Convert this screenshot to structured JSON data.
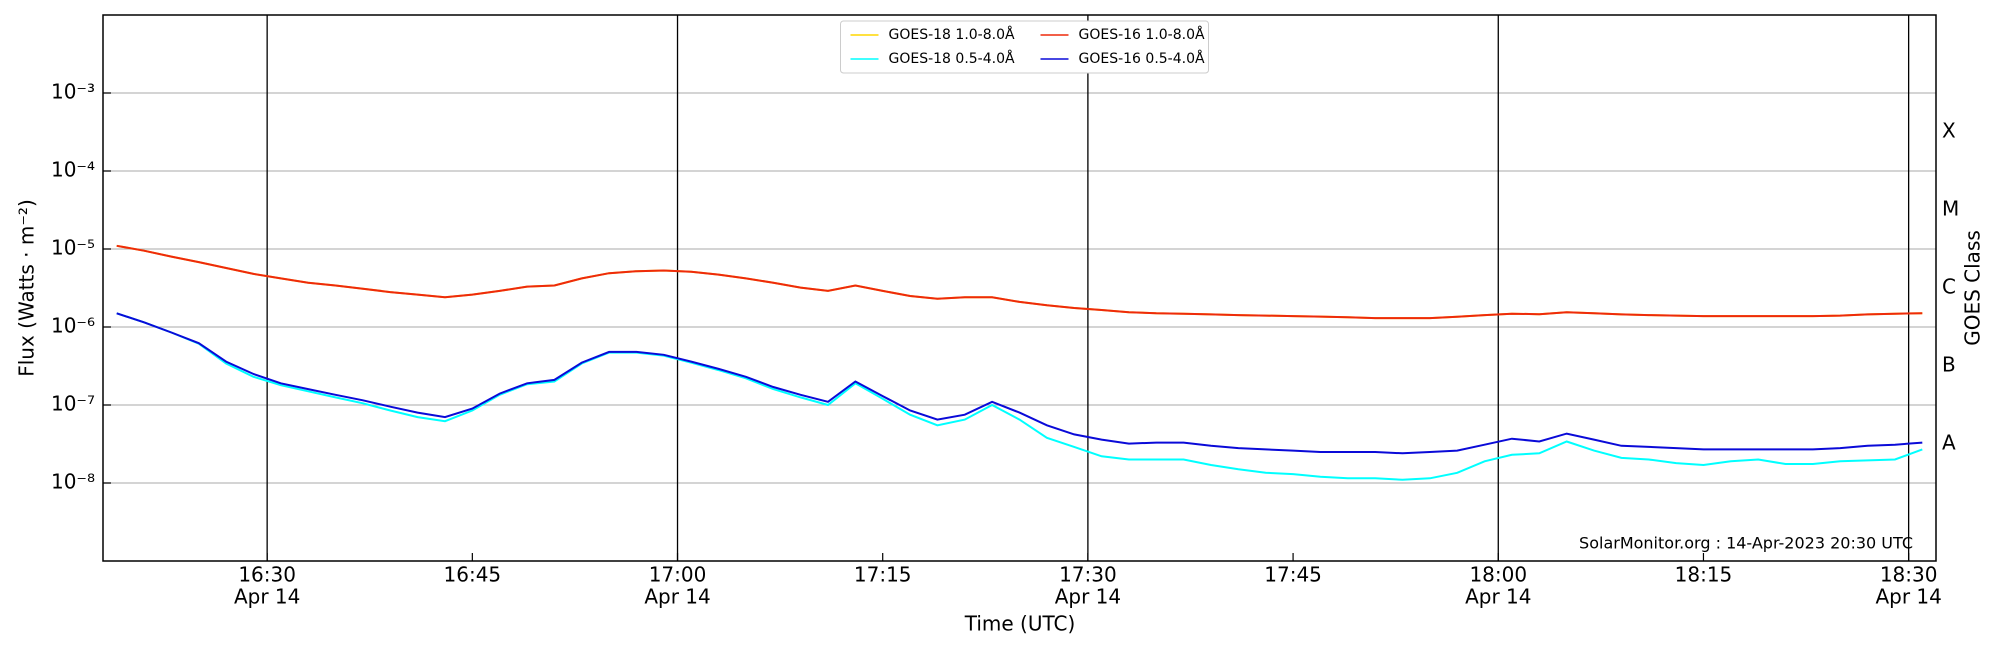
{
  "chart_data": {
    "type": "line",
    "xlabel": "Time (UTC)",
    "ylabel": "Flux (Watts · m⁻²)",
    "y2label": "GOES Class",
    "annotation": "SolarMonitor.org : 14-Apr-2023 20:30 UTC",
    "log_y": true,
    "grid": true,
    "legend": "upper center",
    "xlim": [
      "16:18",
      "18:32"
    ],
    "xticks": [
      {
        "value": "16:30",
        "label": "16:30",
        "date": "Apr 14"
      },
      {
        "value": "16:45",
        "label": "16:45"
      },
      {
        "value": "17:00",
        "label": "17:00",
        "date": "Apr 14"
      },
      {
        "value": "17:15",
        "label": "17:15"
      },
      {
        "value": "17:30",
        "label": "17:30",
        "date": "Apr 14"
      },
      {
        "value": "17:45",
        "label": "17:45"
      },
      {
        "value": "18:00",
        "label": "18:00",
        "date": "Apr 14"
      },
      {
        "value": "18:15",
        "label": "18:15"
      },
      {
        "value": "18:30",
        "label": "18:30",
        "date": "Apr 14"
      }
    ],
    "vlines": [
      "16:30",
      "17:00",
      "17:30",
      "18:00",
      "18:30"
    ],
    "ylim": [
      1e-09,
      0.01
    ],
    "yticks": [
      {
        "value": 1e-08,
        "label": "10⁻⁸"
      },
      {
        "value": 1e-07,
        "label": "10⁻⁷"
      },
      {
        "value": 1e-06,
        "label": "10⁻⁶"
      },
      {
        "value": 1e-05,
        "label": "10⁻⁵"
      },
      {
        "value": 0.0001,
        "label": "10⁻⁴"
      },
      {
        "value": 0.001,
        "label": "10⁻³"
      }
    ],
    "y2lim": [
      1e-09,
      0.01
    ],
    "y2ticks": [
      {
        "value": 3.16e-08,
        "label": "A"
      },
      {
        "value": 3.16e-07,
        "label": "B"
      },
      {
        "value": 3.16e-06,
        "label": "C"
      },
      {
        "value": 3.16e-05,
        "label": "M"
      },
      {
        "value": 0.000316,
        "label": "X"
      }
    ],
    "x": [
      "16:19",
      "16:21",
      "16:23",
      "16:25",
      "16:27",
      "16:29",
      "16:31",
      "16:33",
      "16:35",
      "16:37",
      "16:39",
      "16:41",
      "16:43",
      "16:45",
      "16:47",
      "16:49",
      "16:51",
      "16:53",
      "16:55",
      "16:57",
      "16:59",
      "17:01",
      "17:03",
      "17:05",
      "17:07",
      "17:09",
      "17:11",
      "17:13",
      "17:15",
      "17:17",
      "17:19",
      "17:21",
      "17:23",
      "17:25",
      "17:27",
      "17:29",
      "17:31",
      "17:33",
      "17:35",
      "17:37",
      "17:39",
      "17:41",
      "17:43",
      "17:45",
      "17:47",
      "17:49",
      "17:51",
      "17:53",
      "17:55",
      "17:57",
      "17:59",
      "18:01",
      "18:03",
      "18:05",
      "18:07",
      "18:09",
      "18:11",
      "18:13",
      "18:15",
      "18:17",
      "18:19",
      "18:21",
      "18:23",
      "18:25",
      "18:27",
      "18:29",
      "18:31"
    ],
    "series": [
      {
        "name": "GOES-18 1.0-8.0Å",
        "color": "#ffd700",
        "values": [
          1.1e-05,
          9.5e-06,
          8e-06,
          6.8e-06,
          5.7e-06,
          4.8e-06,
          4.2e-06,
          3.7e-06,
          3.4e-06,
          3.1e-06,
          2.8e-06,
          2.6e-06,
          2.4e-06,
          2.6e-06,
          2.9e-06,
          3.3e-06,
          3.4e-06,
          4.2e-06,
          4.9e-06,
          5.2e-06,
          5.3e-06,
          5.1e-06,
          4.7e-06,
          4.2e-06,
          3.7e-06,
          3.2e-06,
          2.9e-06,
          3.4e-06,
          2.9e-06,
          2.5e-06,
          2.3e-06,
          2.4e-06,
          2.4e-06,
          2.1e-06,
          1.9e-06,
          1.75e-06,
          1.65e-06,
          1.55e-06,
          1.5e-06,
          1.48e-06,
          1.45e-06,
          1.42e-06,
          1.4e-06,
          1.38e-06,
          1.36e-06,
          1.33e-06,
          1.3e-06,
          1.3e-06,
          1.3e-06,
          1.35e-06,
          1.42e-06,
          1.48e-06,
          1.46e-06,
          1.55e-06,
          1.5e-06,
          1.45e-06,
          1.42e-06,
          1.4e-06,
          1.38e-06,
          1.38e-06,
          1.38e-06,
          1.38e-06,
          1.38e-06,
          1.4e-06,
          1.45e-06,
          1.48e-06,
          1.5e-06
        ]
      },
      {
        "name": "GOES-18 0.5-4.0Å",
        "color": "#00ffff",
        "values": [
          1.5e-06,
          1.15e-06,
          8.5e-07,
          6.1e-07,
          3.4e-07,
          2.3e-07,
          1.8e-07,
          1.5e-07,
          1.25e-07,
          1.05e-07,
          8.5e-08,
          7e-08,
          6.2e-08,
          8.5e-08,
          1.35e-07,
          1.85e-07,
          2e-07,
          3.4e-07,
          4.7e-07,
          4.7e-07,
          4.3e-07,
          3.5e-07,
          2.8e-07,
          2.2e-07,
          1.6e-07,
          1.25e-07,
          1e-07,
          1.9e-07,
          1.2e-07,
          7.5e-08,
          5.5e-08,
          6.5e-08,
          1e-07,
          6.5e-08,
          3.8e-08,
          2.9e-08,
          2.2e-08,
          2e-08,
          2e-08,
          2e-08,
          1.7e-08,
          1.5e-08,
          1.35e-08,
          1.3e-08,
          1.2e-08,
          1.15e-08,
          1.15e-08,
          1.1e-08,
          1.15e-08,
          1.35e-08,
          1.9e-08,
          2.3e-08,
          2.4e-08,
          3.4e-08,
          2.6e-08,
          2.1e-08,
          2e-08,
          1.8e-08,
          1.7e-08,
          1.9e-08,
          2e-08,
          1.75e-08,
          1.75e-08,
          1.9e-08,
          1.95e-08,
          2e-08,
          2.7e-08
        ]
      },
      {
        "name": "GOES-16 1.0-8.0Å",
        "color": "#ee2a0c",
        "values": [
          1.1e-05,
          9.5e-06,
          8e-06,
          6.8e-06,
          5.7e-06,
          4.8e-06,
          4.2e-06,
          3.7e-06,
          3.4e-06,
          3.1e-06,
          2.8e-06,
          2.6e-06,
          2.4e-06,
          2.6e-06,
          2.9e-06,
          3.3e-06,
          3.4e-06,
          4.2e-06,
          4.9e-06,
          5.2e-06,
          5.3e-06,
          5.1e-06,
          4.7e-06,
          4.2e-06,
          3.7e-06,
          3.2e-06,
          2.9e-06,
          3.4e-06,
          2.9e-06,
          2.5e-06,
          2.3e-06,
          2.4e-06,
          2.4e-06,
          2.1e-06,
          1.9e-06,
          1.75e-06,
          1.65e-06,
          1.55e-06,
          1.5e-06,
          1.48e-06,
          1.45e-06,
          1.42e-06,
          1.4e-06,
          1.38e-06,
          1.36e-06,
          1.33e-06,
          1.3e-06,
          1.3e-06,
          1.3e-06,
          1.35e-06,
          1.42e-06,
          1.48e-06,
          1.46e-06,
          1.55e-06,
          1.5e-06,
          1.45e-06,
          1.42e-06,
          1.4e-06,
          1.38e-06,
          1.38e-06,
          1.38e-06,
          1.38e-06,
          1.38e-06,
          1.4e-06,
          1.45e-06,
          1.48e-06,
          1.5e-06
        ]
      },
      {
        "name": "GOES-16 0.5-4.0Å",
        "color": "#0a0ad8",
        "values": [
          1.5e-06,
          1.15e-06,
          8.5e-07,
          6.2e-07,
          3.6e-07,
          2.5e-07,
          1.9e-07,
          1.6e-07,
          1.35e-07,
          1.15e-07,
          9.5e-08,
          8e-08,
          7e-08,
          9e-08,
          1.4e-07,
          1.9e-07,
          2.1e-07,
          3.5e-07,
          4.8e-07,
          4.8e-07,
          4.4e-07,
          3.6e-07,
          2.9e-07,
          2.3e-07,
          1.7e-07,
          1.35e-07,
          1.1e-07,
          2e-07,
          1.3e-07,
          8.5e-08,
          6.5e-08,
          7.5e-08,
          1.1e-07,
          8e-08,
          5.5e-08,
          4.2e-08,
          3.6e-08,
          3.2e-08,
          3.3e-08,
          3.3e-08,
          3e-08,
          2.8e-08,
          2.7e-08,
          2.6e-08,
          2.5e-08,
          2.5e-08,
          2.5e-08,
          2.4e-08,
          2.5e-08,
          2.6e-08,
          3.1e-08,
          3.7e-08,
          3.4e-08,
          4.3e-08,
          3.6e-08,
          3e-08,
          2.9e-08,
          2.8e-08,
          2.7e-08,
          2.7e-08,
          2.7e-08,
          2.7e-08,
          2.7e-08,
          2.8e-08,
          3e-08,
          3.1e-08,
          3.3e-08
        ]
      }
    ]
  }
}
